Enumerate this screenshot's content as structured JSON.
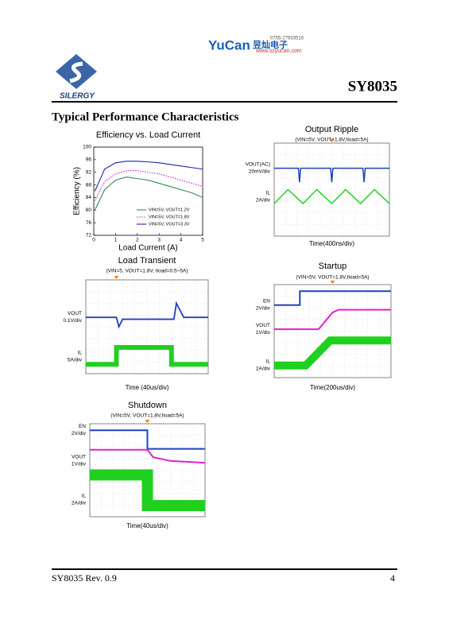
{
  "header": {
    "brand": "YuCan",
    "brand_cn": "昱灿电子",
    "phone": "0755-27933516",
    "url": "www.szyucan.com",
    "company": "SILERGY",
    "part": "SY8035"
  },
  "section_title": "Typical Performance Characteristics",
  "chart_data": {
    "type": "line",
    "title": "Efficiency vs. Load Current",
    "x_label": "Load Current (A)",
    "y_label": "Efficiency (%)",
    "x": [
      0.05,
      0.5,
      1,
      1.5,
      2,
      2.5,
      3,
      3.5,
      4,
      4.5,
      5
    ],
    "series": [
      {
        "name": "VIN=5V, VOUT=1.2V",
        "color": "#2e8b57",
        "dash": false,
        "values": [
          80,
          86.5,
          89.5,
          90.5,
          90,
          89.5,
          88.5,
          87.5,
          86.5,
          85.5,
          84
        ]
      },
      {
        "name": "VIN=5V, VOUT=1.8V",
        "color": "#d020d0",
        "dash": true,
        "values": [
          83,
          89,
          91.5,
          92.5,
          92.5,
          92,
          91.5,
          90.5,
          89.5,
          88.5,
          87.5
        ]
      },
      {
        "name": "VIN=5V, VOUT=3.3V",
        "color": "#2020b0",
        "dash": false,
        "values": [
          86,
          93,
          95,
          95.5,
          95.5,
          95.3,
          95,
          94.5,
          94,
          93.5,
          93
        ]
      }
    ],
    "xlim": [
      0,
      5
    ],
    "ylim": [
      72,
      100
    ],
    "xticks": [
      0,
      1,
      2,
      3,
      4,
      5
    ],
    "yticks": [
      72,
      76,
      80,
      84,
      88,
      92,
      96,
      100
    ],
    "legend": "lower-right"
  },
  "scopes": [
    {
      "title": "Output Ripple",
      "subtitle": "(VIN=5V, VOUT=1.8V,Iload=5A)",
      "caption": "Time(400ns/div)",
      "channels": [
        {
          "name": "VOUT(AC)",
          "scale": "20mV/div"
        },
        {
          "name": "IL",
          "scale": "2A/div"
        }
      ]
    },
    {
      "title": "Load Transient",
      "subtitle": "(VIN=5, VOUT=1.8V, Iload=0.5~5A)",
      "caption": "Time (40us/div)",
      "channels": [
        {
          "name": "VOUT",
          "scale": "0.1V/div"
        },
        {
          "name": "IL",
          "scale": "5A/div"
        }
      ]
    },
    {
      "title": "Startup",
      "subtitle": "(VIN=5V, VOUT=1.8V,Iload=5A)",
      "caption": "Time(200us/div)",
      "channels": [
        {
          "name": "EN",
          "scale": "2V/div"
        },
        {
          "name": "VOUT",
          "scale": "1V/div"
        },
        {
          "name": "IL",
          "scale": "2A/div"
        }
      ]
    },
    {
      "title": "Shutdown",
      "subtitle": "(VIN=5V, VOUT=1.8V,Iload=5A)",
      "caption": "Time(40us/div)",
      "channels": [
        {
          "name": "EN",
          "scale": "2V/div"
        },
        {
          "name": "VOUT",
          "scale": "1V/div"
        },
        {
          "name": "IL",
          "scale": "2A/div"
        }
      ]
    }
  ],
  "footer": {
    "left": "SY8035 Rev. 0.9",
    "page": "4"
  }
}
